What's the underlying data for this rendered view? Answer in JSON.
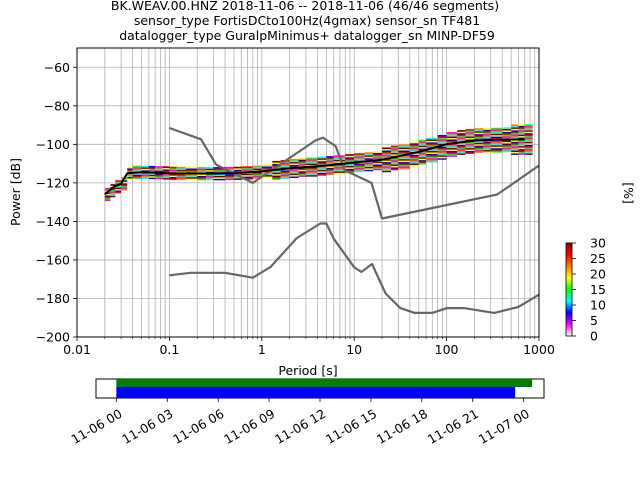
{
  "chart_data": {
    "type": "heatmap",
    "title_lines": [
      "BK.WEAV.00.HNZ   2018-11-06 -- 2018-11-06  (46/46 segments)",
      "sensor_type FortisDCto100Hz(4gmax) sensor_sn TF481",
      "datalogger_type GuralpMinimus+ datalogger_sn MINP-DF59"
    ],
    "xlabel": "Period [s]",
    "ylabel": "Power [dB]",
    "xscale": "log",
    "xlim": [
      0.01,
      1000
    ],
    "ylim": [
      -200,
      -50
    ],
    "x_ticks": [
      0.01,
      0.1,
      1,
      10,
      100,
      1000
    ],
    "x_tick_labels": [
      "0.01",
      "0.1",
      "1",
      "10",
      "100",
      "1000"
    ],
    "y_ticks": [
      -200,
      -180,
      -160,
      -140,
      -120,
      -100,
      -80,
      -60
    ],
    "y_tick_labels": [
      "−200",
      "−180",
      "−160",
      "−140",
      "−120",
      "−100",
      "−80",
      "−60"
    ],
    "grid": true,
    "colorbar": {
      "label": "[%]",
      "range": [
        0,
        30
      ],
      "ticks": [
        0,
        5,
        10,
        15,
        20,
        25,
        30
      ],
      "tick_labels": [
        "0",
        "5",
        "10",
        "15",
        "20",
        "25",
        "30"
      ],
      "colormap": [
        "#ffffff",
        "#ff00ff",
        "#0000ff",
        "#00ffff",
        "#00ff00",
        "#ffff00",
        "#ff7f00",
        "#ff0000",
        "#800000"
      ]
    },
    "noise_models": {
      "color": "#666666",
      "nhnm": [
        [
          0.1,
          -91.5
        ],
        [
          0.22,
          -97.4
        ],
        [
          0.32,
          -110.5
        ],
        [
          0.8,
          -120
        ],
        [
          3.8,
          -98
        ],
        [
          4.6,
          -96.5
        ],
        [
          6.3,
          -101
        ],
        [
          7.9,
          -113.5
        ],
        [
          15.4,
          -120
        ],
        [
          20,
          -138.5
        ],
        [
          354.8,
          -126
        ],
        [
          1000,
          -111
        ]
      ],
      "nlnm": [
        [
          0.1,
          -168
        ],
        [
          0.17,
          -166.7
        ],
        [
          0.4,
          -166.7
        ],
        [
          0.8,
          -169.2
        ],
        [
          1.24,
          -163.7
        ],
        [
          2.4,
          -148.6
        ],
        [
          4.3,
          -141.1
        ],
        [
          5,
          -141.1
        ],
        [
          6,
          -149
        ],
        [
          10,
          -163.8
        ],
        [
          12,
          -166.2
        ],
        [
          15.6,
          -162.1
        ],
        [
          21.9,
          -177.5
        ],
        [
          31.6,
          -185
        ],
        [
          45,
          -187.5
        ],
        [
          70,
          -187.5
        ],
        [
          101,
          -185
        ],
        [
          154,
          -185
        ],
        [
          328,
          -187.5
        ],
        [
          600,
          -184.4
        ],
        [
          1000,
          -178
        ]
      ]
    },
    "mode_line": {
      "color": "#000000",
      "points": [
        [
          0.02,
          -126
        ],
        [
          0.025,
          -122
        ],
        [
          0.03,
          -120.5
        ],
        [
          0.035,
          -115
        ],
        [
          0.05,
          -114.5
        ],
        [
          0.1,
          -115
        ],
        [
          0.3,
          -115.2
        ],
        [
          0.5,
          -115
        ],
        [
          1,
          -114
        ],
        [
          2,
          -112.5
        ],
        [
          5,
          -111
        ],
        [
          10,
          -109.5
        ],
        [
          20,
          -108
        ],
        [
          50,
          -104
        ],
        [
          100,
          -100
        ],
        [
          200,
          -98
        ],
        [
          500,
          -97.5
        ],
        [
          700,
          -97.5
        ]
      ]
    },
    "heat_columns": [
      {
        "period": 0.02,
        "center": -126,
        "spread": 2
      },
      {
        "period": 0.023,
        "center": -124,
        "spread": 2
      },
      {
        "period": 0.026,
        "center": -122,
        "spread": 2
      },
      {
        "period": 0.03,
        "center": -120.5,
        "spread": 2
      },
      {
        "period": 0.035,
        "center": -115,
        "spread": 2
      },
      {
        "period": 0.04,
        "center": -114.5,
        "spread": 2
      },
      {
        "period": 0.05,
        "center": -114.5,
        "spread": 2
      },
      {
        "period": 0.06,
        "center": -114.6,
        "spread": 2
      },
      {
        "period": 0.07,
        "center": -114.7,
        "spread": 2
      },
      {
        "period": 0.085,
        "center": -114.8,
        "spread": 2
      },
      {
        "period": 0.1,
        "center": -115,
        "spread": 2
      },
      {
        "period": 0.12,
        "center": -115.1,
        "spread": 2
      },
      {
        "period": 0.15,
        "center": -115.1,
        "spread": 2
      },
      {
        "period": 0.2,
        "center": -115.2,
        "spread": 2
      },
      {
        "period": 0.25,
        "center": -115.2,
        "spread": 2
      },
      {
        "period": 0.3,
        "center": -115.2,
        "spread": 2
      },
      {
        "period": 0.4,
        "center": -115.1,
        "spread": 2
      },
      {
        "period": 0.5,
        "center": -115,
        "spread": 2
      },
      {
        "period": 0.6,
        "center": -114.8,
        "spread": 2
      },
      {
        "period": 0.8,
        "center": -114.4,
        "spread": 2
      },
      {
        "period": 1,
        "center": -114,
        "spread": 2
      },
      {
        "period": 1.3,
        "center": -113.5,
        "spread": 3
      },
      {
        "period": 1.6,
        "center": -113,
        "spread": 3
      },
      {
        "period": 2,
        "center": -112.5,
        "spread": 3
      },
      {
        "period": 2.5,
        "center": -112,
        "spread": 3
      },
      {
        "period": 3,
        "center": -111.8,
        "spread": 3
      },
      {
        "period": 4,
        "center": -111.3,
        "spread": 3
      },
      {
        "period": 5,
        "center": -111,
        "spread": 3
      },
      {
        "period": 6,
        "center": -110.6,
        "spread": 3
      },
      {
        "period": 8,
        "center": -110,
        "spread": 3
      },
      {
        "period": 10,
        "center": -109.5,
        "spread": 3
      },
      {
        "period": 13,
        "center": -109,
        "spread": 3
      },
      {
        "period": 16,
        "center": -108.5,
        "spread": 3
      },
      {
        "period": 20,
        "center": -108,
        "spread": 4
      },
      {
        "period": 25,
        "center": -107,
        "spread": 4
      },
      {
        "period": 30,
        "center": -106.5,
        "spread": 4
      },
      {
        "period": 40,
        "center": -105,
        "spread": 4
      },
      {
        "period": 50,
        "center": -104,
        "spread": 4
      },
      {
        "period": 60,
        "center": -103,
        "spread": 4
      },
      {
        "period": 80,
        "center": -101.5,
        "spread": 4
      },
      {
        "period": 100,
        "center": -100,
        "spread": 4
      },
      {
        "period": 130,
        "center": -99,
        "spread": 4
      },
      {
        "period": 160,
        "center": -98.5,
        "spread": 4
      },
      {
        "period": 200,
        "center": -98,
        "spread": 4
      },
      {
        "period": 250,
        "center": -98,
        "spread": 4
      },
      {
        "period": 300,
        "center": -97.8,
        "spread": 4
      },
      {
        "period": 400,
        "center": -97.6,
        "spread": 4
      },
      {
        "period": 500,
        "center": -97.5,
        "spread": 5
      },
      {
        "period": 600,
        "center": -97.5,
        "spread": 5
      },
      {
        "period": 700,
        "center": -97.5,
        "spread": 5
      }
    ],
    "coverage": {
      "tick_labels": [
        "11-06 00",
        "11-06 03",
        "11-06 06",
        "11-06 09",
        "11-06 12",
        "11-06 15",
        "11-06 18",
        "11-06 21",
        "11-07 00"
      ],
      "tick_hours": [
        0,
        3,
        6,
        9,
        12,
        15,
        18,
        21,
        24
      ],
      "range_hours": [
        -1.2,
        25.2
      ],
      "data_bar": {
        "color": "#008000",
        "start_hour": 0,
        "end_hour": 24.5
      },
      "used_bar": {
        "color": "#0000ff",
        "start_hour": 0,
        "end_hour": 23.5
      }
    }
  }
}
